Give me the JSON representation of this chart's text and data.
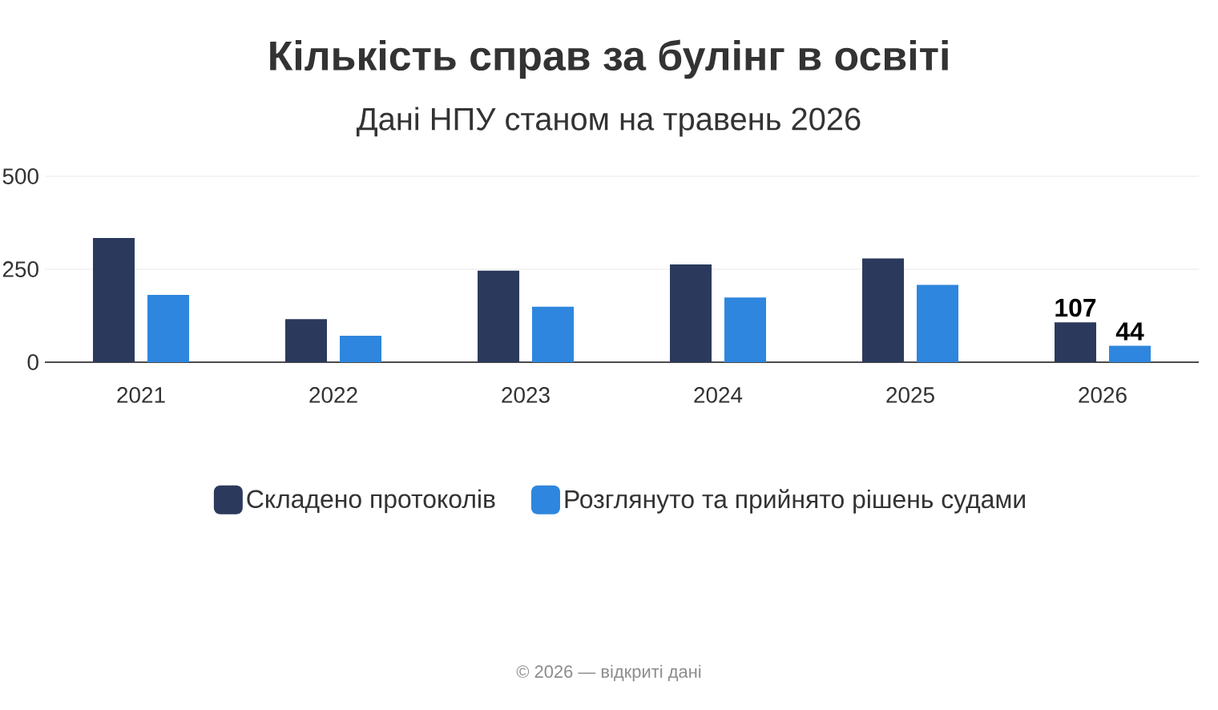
{
  "chart_data": {
    "type": "bar",
    "title": "Кількість справ за булінг в освіті",
    "subtitle": "Дані НПУ станом на травень 2026",
    "categories": [
      "2021",
      "2022",
      "2023",
      "2024",
      "2025",
      "2026"
    ],
    "series": [
      {
        "name": "Складено протоколів",
        "color": "#2b3a5c",
        "values": [
          334,
          116,
          246,
          263,
          279,
          107
        ],
        "value_labels": [
          null,
          null,
          null,
          null,
          null,
          "107"
        ]
      },
      {
        "name": "Розглянуто та прийнято рішень судами",
        "color": "#2e86de",
        "values": [
          181,
          71,
          149,
          174,
          208,
          44
        ],
        "value_labels": [
          null,
          null,
          null,
          null,
          null,
          "44"
        ]
      }
    ],
    "ylim": [
      0,
      500
    ],
    "yticks": [
      0,
      250,
      500
    ],
    "grid": "y",
    "legend": "bottom",
    "annotations": [
      "© 2026 — відкриті дані"
    ]
  }
}
